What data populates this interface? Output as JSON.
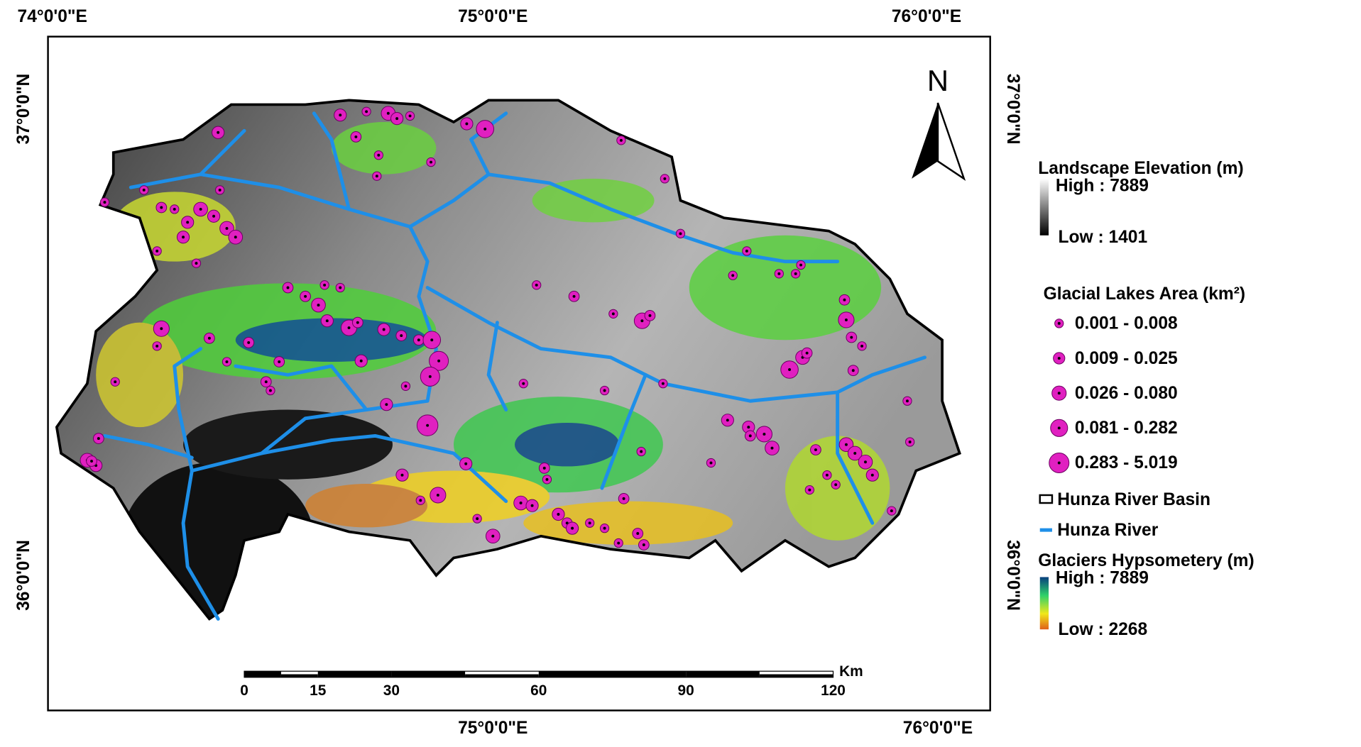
{
  "map": {
    "graticule": {
      "top": [
        "74°0'0\"E",
        "75°0'0\"E",
        "76°0'0\"E"
      ],
      "bottom": [
        "75°0'0\"E",
        "76°0'0\"E"
      ],
      "left": [
        "37°0'0\"N",
        "36°0'0\"N"
      ],
      "right": [
        "37°0'0\"N",
        "36°0'0\"N"
      ]
    },
    "north_arrow": "N",
    "scale_bar": {
      "unit": "Km",
      "ticks": [
        0,
        15,
        30,
        60,
        90,
        120
      ]
    }
  },
  "legend": {
    "elevation": {
      "title": "Landscape Elevation (m)",
      "high": "High : 7889",
      "low": "Low : 1401"
    },
    "lakes": {
      "title": "Glacial Lakes Area (km²)",
      "classes": [
        "0.001 - 0.008",
        "0.009 - 0.025",
        "0.026 - 0.080",
        "0.081 - 0.282",
        "0.283 - 5.019"
      ]
    },
    "basin": "Hunza River Basin",
    "river": "Hunza River",
    "glaciers": {
      "title": "Glaciers Hypsometery (m)",
      "high": "High : 7889",
      "low": "Low : 2268"
    }
  }
}
